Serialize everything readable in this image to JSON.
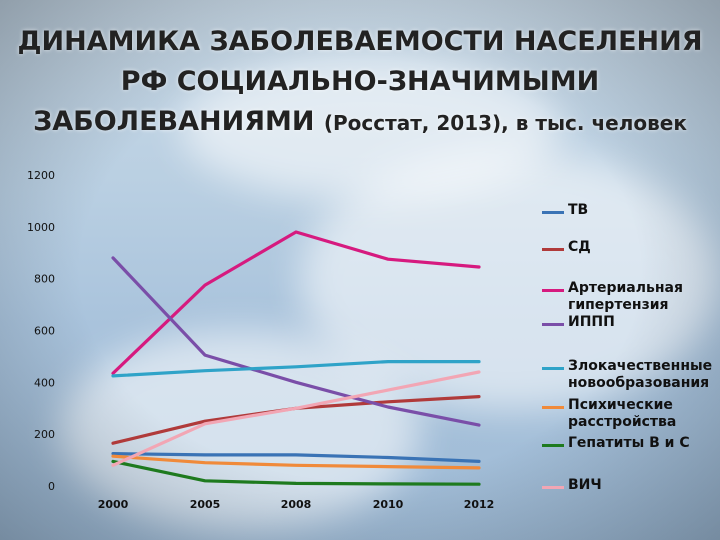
{
  "title": {
    "line1": "ДИНАМИКА ЗАБОЛЕВАЕМОСТИ НАСЕЛЕНИЯ",
    "line2": "РФ СОЦИАЛЬНО-ЗНАЧИМЫМИ",
    "line3_main": "ЗАБОЛЕВАНИЯМИ",
    "line3_sub": "(Росстат, 2013), в тыс. человек"
  },
  "chart_data": {
    "type": "line",
    "x": [
      2000,
      2005,
      2008,
      2010,
      2012
    ],
    "x_ticks": [
      "2000",
      "2005",
      "2008",
      "2010",
      "2012"
    ],
    "ylim": [
      0,
      1200
    ],
    "y_ticks": [
      "0",
      "200",
      "400",
      "600",
      "800",
      "1000",
      "1200"
    ],
    "grid": false,
    "legend": "right",
    "series": [
      {
        "name": "ТВ",
        "color": "#3a73b5",
        "values": [
          125,
          120,
          120,
          110,
          95
        ]
      },
      {
        "name": "СД",
        "color": "#b03a3a",
        "values": [
          165,
          250,
          300,
          325,
          345
        ]
      },
      {
        "name": "Артериальная гипертензия",
        "color": "#d61a7f",
        "values": [
          435,
          775,
          980,
          875,
          845
        ]
      },
      {
        "name": "ИППП",
        "color": "#7a4ea8",
        "values": [
          880,
          505,
          400,
          305,
          235
        ]
      },
      {
        "name": "Злокачественные новообразования",
        "color": "#2fa3c8",
        "values": [
          425,
          445,
          460,
          480,
          480
        ]
      },
      {
        "name": "Психические расстройства",
        "color": "#f08a3a",
        "values": [
          115,
          90,
          80,
          75,
          70
        ]
      },
      {
        "name": "Гепатиты В и С",
        "color": "#1e7a1e",
        "values": [
          95,
          20,
          10,
          8,
          7
        ]
      },
      {
        "name": "ВИЧ",
        "color": "#f2a6b4",
        "values": [
          80,
          240,
          300,
          370,
          440
        ]
      }
    ]
  }
}
